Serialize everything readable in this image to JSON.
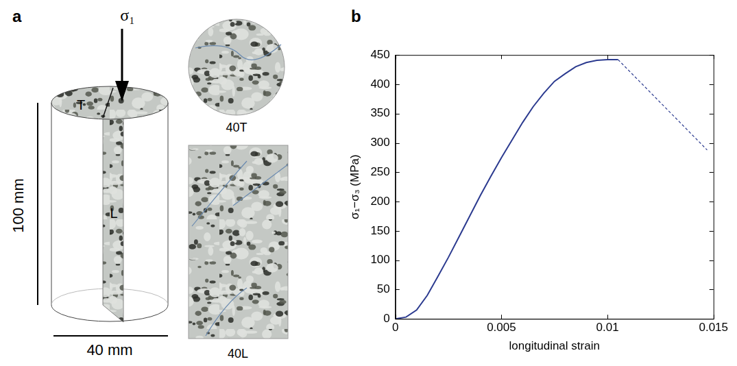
{
  "panel_labels": [
    "a",
    "b"
  ],
  "diagram": {
    "load_label": "σ₁",
    "height_label": "100 mm",
    "width_label": "40 mm",
    "face_labels": [
      "T",
      "L"
    ],
    "images": [
      {
        "caption": "40T"
      },
      {
        "caption": "40L"
      }
    ]
  },
  "chart_data": {
    "type": "line",
    "x_label": "longitudinal strain",
    "y_label": "σ₁−σ₃ (MPa)",
    "xlim": [
      0,
      0.015
    ],
    "xticks": [
      0,
      0.005,
      0.01,
      0.015
    ],
    "ylim": [
      0,
      450
    ],
    "yticks": [
      0,
      50,
      100,
      150,
      200,
      250,
      300,
      350,
      400,
      450
    ],
    "grid": false,
    "series": [
      {
        "color": "#2b3a8f",
        "line_style": "solid",
        "x": [
          0,
          0.0005,
          0.001,
          0.0015,
          0.002,
          0.0025,
          0.003,
          0.0035,
          0.004,
          0.0045,
          0.005,
          0.0055,
          0.006,
          0.0065,
          0.007,
          0.0075,
          0.008,
          0.0085,
          0.009,
          0.0095,
          0.01,
          0.0105
        ],
        "values": [
          0,
          3,
          15,
          40,
          72,
          105,
          140,
          175,
          210,
          243,
          275,
          305,
          335,
          362,
          385,
          405,
          418,
          430,
          437,
          441,
          442,
          442
        ]
      },
      {
        "color": "#2b3a8f",
        "line_style": "dashed",
        "x": [
          0.0105,
          0.0147
        ],
        "values": [
          442,
          288
        ]
      }
    ]
  }
}
